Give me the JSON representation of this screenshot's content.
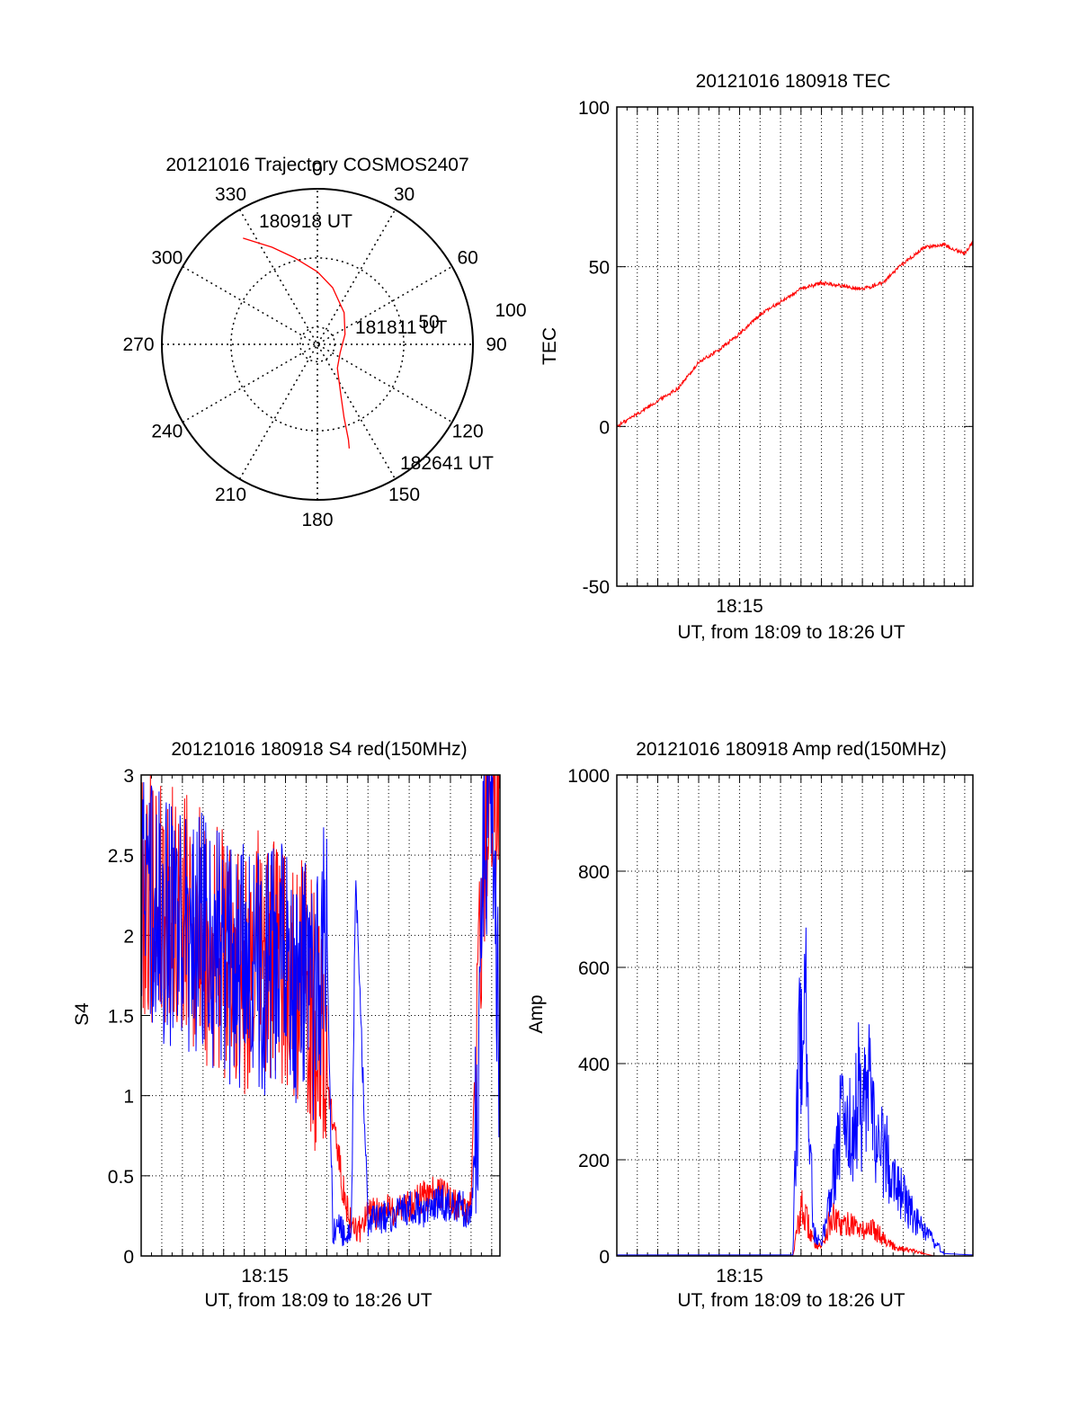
{
  "chart_data": [
    {
      "type": "polar",
      "title": "20121016 Trajectory COSMOS2407",
      "angle_labels": [
        "0",
        "30",
        "60",
        "90",
        "120",
        "150",
        "180",
        "210",
        "240",
        "270",
        "300",
        "330"
      ],
      "radial_labels": [
        "50",
        "100"
      ],
      "series": [
        {
          "color": "#ff0000",
          "points": [
            [
              -35,
              75
            ],
            [
              -25,
              62
            ],
            [
              -15,
              52
            ],
            [
              0,
              42
            ],
            [
              15,
              34
            ],
            [
              40,
              24
            ],
            [
              70,
              17
            ],
            [
              110,
              14
            ],
            [
              140,
              18
            ],
            [
              155,
              32
            ],
            [
              160,
              45
            ],
            [
              162,
              58
            ],
            [
              163,
              63
            ]
          ]
        }
      ],
      "annotations": [
        "180918 UT",
        "181811 UT",
        "182641 UT"
      ],
      "grid": true
    },
    {
      "type": "line",
      "title": "20121016 180918 TEC",
      "xlabel": "UT, from 18:09 to 18:26 UT",
      "ylabel": "TEC",
      "xlim": [
        0,
        17.4
      ],
      "ylim": [
        -50,
        100
      ],
      "xticks": [
        {
          "value": 6,
          "label": "18:15"
        }
      ],
      "yticks": [
        "100",
        "50",
        "0",
        "-50"
      ],
      "grid": true,
      "series": [
        {
          "color": "#ff0000",
          "x": [
            0,
            1,
            2,
            3,
            4,
            5,
            6,
            7,
            8,
            9,
            10,
            11,
            12,
            13,
            14,
            15,
            16,
            17,
            17.4
          ],
          "y": [
            0,
            4,
            8,
            12,
            20,
            24,
            29,
            35,
            39,
            43,
            45,
            44,
            43,
            45,
            51,
            56,
            57,
            54,
            58
          ]
        }
      ]
    },
    {
      "type": "line",
      "title": "20121016 180918 S4 red(150MHz)",
      "xlabel": "UT, from 18:09 to 18:26 UT",
      "ylabel": "S4",
      "xlim": [
        0,
        17.4
      ],
      "ylim": [
        0,
        3
      ],
      "xticks": [
        {
          "value": 6,
          "label": "18:15"
        }
      ],
      "yticks": [
        "3",
        "2.5",
        "2",
        "1.5",
        "1",
        "0.5",
        "0"
      ],
      "grid": true,
      "series": [
        {
          "color": "#ff0000",
          "x": [
            0,
            1,
            2,
            3,
            4,
            5,
            6,
            7,
            8,
            8.5,
            9,
            9.2,
            9.5,
            9.8,
            10,
            10.2,
            10.4,
            11,
            12,
            13,
            14,
            14.5,
            15,
            15.5,
            16,
            16.2,
            16.6,
            17,
            17.4
          ],
          "y": [
            2.3,
            2.2,
            2.1,
            2.0,
            1.9,
            1.8,
            1.9,
            1.8,
            1.7,
            1.4,
            1.2,
            0.9,
            0.7,
            0.4,
            0.3,
            0.2,
            0.15,
            0.25,
            0.28,
            0.32,
            0.38,
            0.4,
            0.35,
            0.3,
            0.3,
            1.2,
            2.5,
            3.0,
            2.8
          ]
        },
        {
          "color": "#0000ff",
          "x": [
            0,
            1,
            2,
            3,
            4,
            5,
            6,
            7,
            8,
            8.5,
            9,
            9.3,
            9.6,
            9.8,
            10,
            10.2,
            10.4,
            11,
            12,
            13,
            14,
            14.5,
            15,
            15.5,
            16,
            16.3,
            16.6,
            17,
            17.4
          ],
          "y": [
            2.3,
            2.1,
            2.0,
            2.0,
            1.9,
            1.8,
            1.8,
            1.8,
            1.7,
            1.6,
            2.0,
            0.15,
            0.15,
            0.15,
            0.18,
            0.2,
            2.4,
            0.2,
            0.25,
            0.3,
            0.28,
            0.35,
            0.3,
            0.3,
            0.28,
            0.9,
            2.5,
            3.0,
            1.2
          ]
        }
      ]
    },
    {
      "type": "line",
      "title": "20121016 180918 Amp red(150MHz)",
      "xlabel": "UT, from 18:09 to 18:26 UT",
      "ylabel": "Amp",
      "xlim": [
        0,
        17.4
      ],
      "ylim": [
        0,
        1000
      ],
      "xticks": [
        {
          "value": 6,
          "label": "18:15"
        }
      ],
      "yticks": [
        "1000",
        "800",
        "600",
        "400",
        "200",
        "0"
      ],
      "grid": true,
      "series": [
        {
          "color": "#ff0000",
          "x": [
            0,
            8.6,
            8.8,
            9.0,
            9.3,
            9.6,
            10,
            10.5,
            11,
            11.5,
            12,
            12.5,
            13,
            13.5,
            14,
            14.5,
            15,
            15.5,
            17.4
          ],
          "y": [
            0,
            0,
            50,
            100,
            70,
            30,
            20,
            80,
            60,
            70,
            50,
            60,
            40,
            20,
            15,
            10,
            5,
            0,
            0
          ]
        },
        {
          "color": "#0000ff",
          "x": [
            0,
            8.6,
            8.8,
            9.0,
            9.3,
            9.6,
            10,
            10.5,
            11,
            11.5,
            11.8,
            12,
            12.3,
            12.6,
            13,
            13.5,
            14,
            14.5,
            15,
            15.5,
            16,
            17.4
          ],
          "y": [
            2,
            2,
            300,
            500,
            480,
            50,
            20,
            150,
            300,
            250,
            340,
            280,
            350,
            250,
            220,
            180,
            120,
            80,
            50,
            30,
            5,
            2
          ]
        }
      ]
    }
  ]
}
